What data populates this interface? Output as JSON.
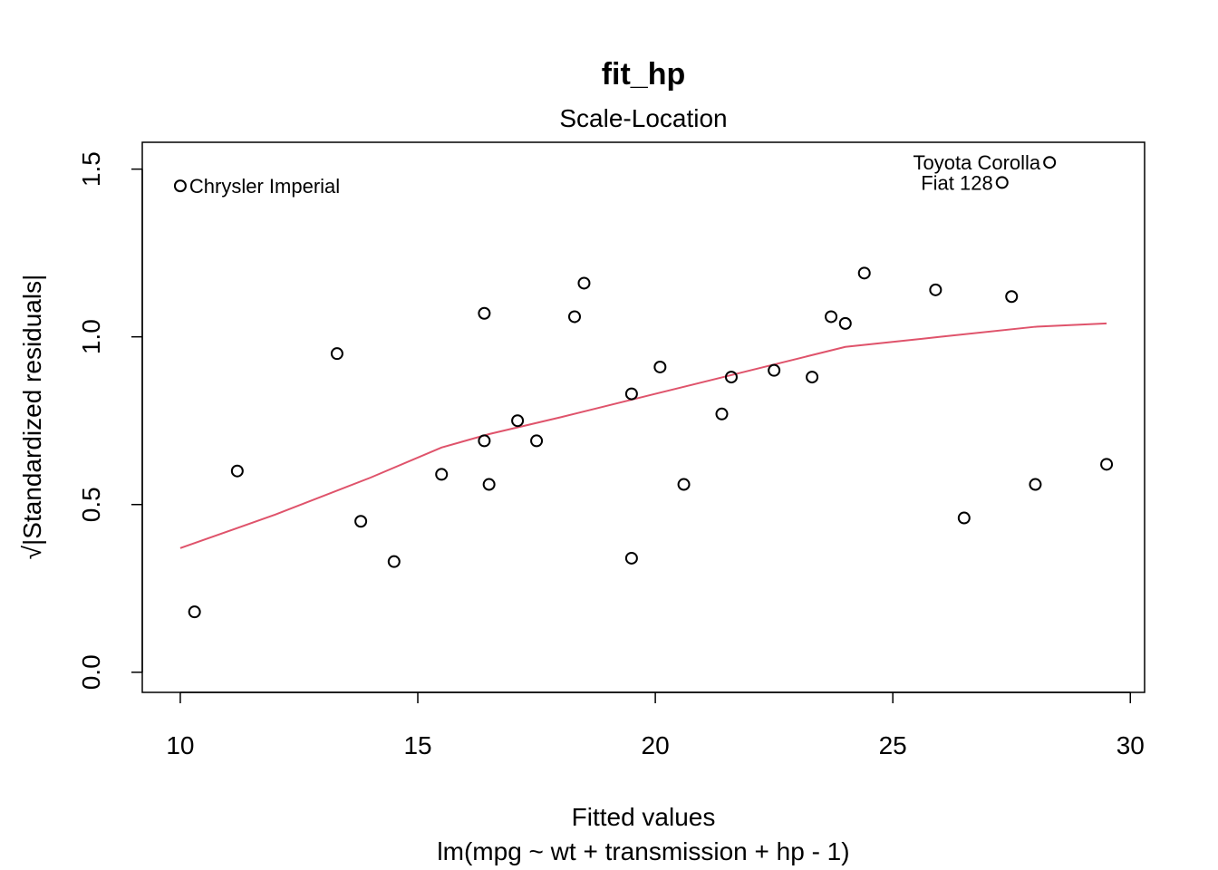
{
  "chart_data": {
    "type": "scatter",
    "title": "fit_hp",
    "subtitle": "Scale-Location",
    "xlabel": "Fitted values",
    "xlabel_sub": "lm(mpg ~ wt + transmission + hp - 1)",
    "ylabel": "√|Standardized residuals|",
    "xlim": [
      9.2,
      30.3
    ],
    "ylim": [
      -0.06,
      1.58
    ],
    "xticks": [
      10,
      15,
      20,
      25,
      30
    ],
    "yticks": [
      0.0,
      0.5,
      1.0,
      1.5
    ],
    "ytick_labels": [
      "0.0",
      "0.5",
      "1.0",
      "1.5"
    ],
    "points": [
      {
        "x": 10.0,
        "y": 1.45,
        "label": "Chrysler Imperial"
      },
      {
        "x": 10.3,
        "y": 0.18
      },
      {
        "x": 11.2,
        "y": 0.6
      },
      {
        "x": 13.3,
        "y": 0.95
      },
      {
        "x": 13.8,
        "y": 0.45
      },
      {
        "x": 14.5,
        "y": 0.33
      },
      {
        "x": 15.5,
        "y": 0.59
      },
      {
        "x": 16.4,
        "y": 1.07
      },
      {
        "x": 16.4,
        "y": 0.69
      },
      {
        "x": 16.5,
        "y": 0.56
      },
      {
        "x": 17.1,
        "y": 0.75
      },
      {
        "x": 17.5,
        "y": 0.69
      },
      {
        "x": 18.3,
        "y": 1.06
      },
      {
        "x": 18.5,
        "y": 1.16
      },
      {
        "x": 19.5,
        "y": 0.83
      },
      {
        "x": 19.5,
        "y": 0.34
      },
      {
        "x": 20.1,
        "y": 0.91
      },
      {
        "x": 20.6,
        "y": 0.56
      },
      {
        "x": 21.4,
        "y": 0.77
      },
      {
        "x": 21.6,
        "y": 0.88
      },
      {
        "x": 22.5,
        "y": 0.9
      },
      {
        "x": 23.3,
        "y": 0.88
      },
      {
        "x": 23.7,
        "y": 1.06
      },
      {
        "x": 24.0,
        "y": 1.04
      },
      {
        "x": 24.4,
        "y": 1.19
      },
      {
        "x": 25.9,
        "y": 1.14
      },
      {
        "x": 26.5,
        "y": 0.46
      },
      {
        "x": 27.3,
        "y": 1.46,
        "label": "Fiat 128"
      },
      {
        "x": 27.5,
        "y": 1.12
      },
      {
        "x": 28.0,
        "y": 0.56
      },
      {
        "x": 28.3,
        "y": 1.52,
        "label": "Toyota Corolla"
      },
      {
        "x": 29.5,
        "y": 0.62
      }
    ],
    "smooth": {
      "color": "#DF536B",
      "x": [
        10.0,
        12.0,
        14.0,
        15.5,
        16.5,
        18.0,
        20.0,
        22.0,
        24.0,
        26.0,
        28.0,
        29.5
      ],
      "y": [
        0.37,
        0.47,
        0.58,
        0.67,
        0.71,
        0.76,
        0.83,
        0.9,
        0.97,
        1.0,
        1.03,
        1.04
      ]
    },
    "grid": false,
    "legend": "none"
  }
}
